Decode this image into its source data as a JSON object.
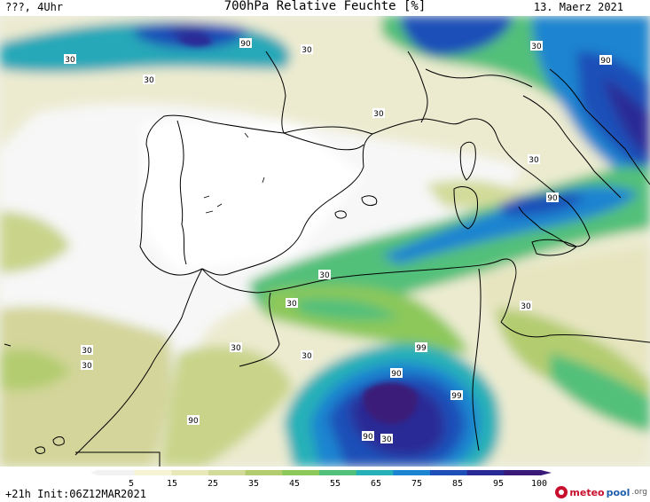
{
  "header": {
    "left": "???, 4Uhr",
    "title": "700hPa Relative Feuchte [%]",
    "date": "13. Maerz 2021"
  },
  "footer": {
    "run_info": "+21h Init:06Z12MAR2021",
    "brand_meteo": "meteo",
    "brand_pool": "pool",
    "brand_org": ".org",
    "brand_icon": "meteopool-logo-icon"
  },
  "legend": {
    "ticks": [
      "5",
      "15",
      "25",
      "35",
      "45",
      "55",
      "65",
      "75",
      "85",
      "95",
      "100"
    ],
    "colors": [
      "#f2f2f2",
      "#f5f5d6",
      "#e8e8b8",
      "#d3db9a",
      "#b3cc70",
      "#8cc85a",
      "#52c07a",
      "#27b0b8",
      "#1c84d0",
      "#1e4fb8",
      "#2a2a96",
      "#3a1a78"
    ]
  },
  "contour_labels": [
    {
      "text": "90"
    },
    {
      "text": "30"
    },
    {
      "text": "30"
    },
    {
      "text": "30"
    },
    {
      "text": "30"
    },
    {
      "text": "30"
    },
    {
      "text": "90"
    },
    {
      "text": "30"
    },
    {
      "text": "90"
    },
    {
      "text": "30"
    },
    {
      "text": "30"
    },
    {
      "text": "30"
    },
    {
      "text": "30"
    },
    {
      "text": "30"
    },
    {
      "text": "30"
    },
    {
      "text": "90"
    },
    {
      "text": "99"
    },
    {
      "text": "90"
    },
    {
      "text": "99"
    },
    {
      "text": "90"
    },
    {
      "text": "30"
    },
    {
      "text": "30"
    }
  ]
}
